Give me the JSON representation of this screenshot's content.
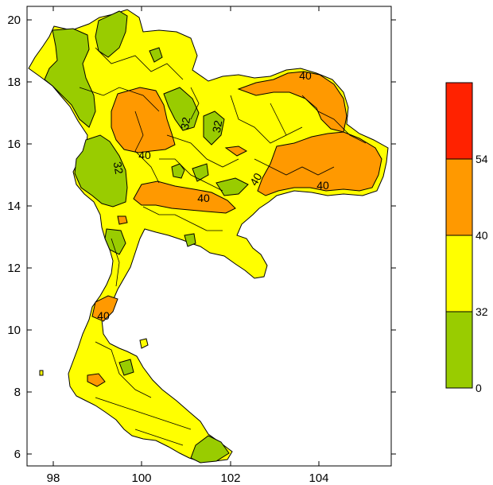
{
  "colors": {
    "green": "#99cc00",
    "yellow": "#ffff00",
    "orange": "#ff9900",
    "red": "#ff2200",
    "outline": "#000000"
  },
  "axes": {
    "x_ticks": [
      "98",
      "100",
      "102",
      "104"
    ],
    "y_ticks": [
      "20",
      "18",
      "16",
      "14",
      "12",
      "10",
      "8",
      "6"
    ]
  },
  "legend": {
    "bins": [
      {
        "label": "0",
        "color": "#99cc00"
      },
      {
        "label": "32",
        "color": "#ffff00"
      },
      {
        "label": "40",
        "color": "#ff9900"
      },
      {
        "label": "54",
        "color": "#ff2200"
      }
    ]
  },
  "contour_labels": [
    "40",
    "32",
    "40",
    "32",
    "40",
    "40",
    "40",
    "40",
    "32"
  ]
}
